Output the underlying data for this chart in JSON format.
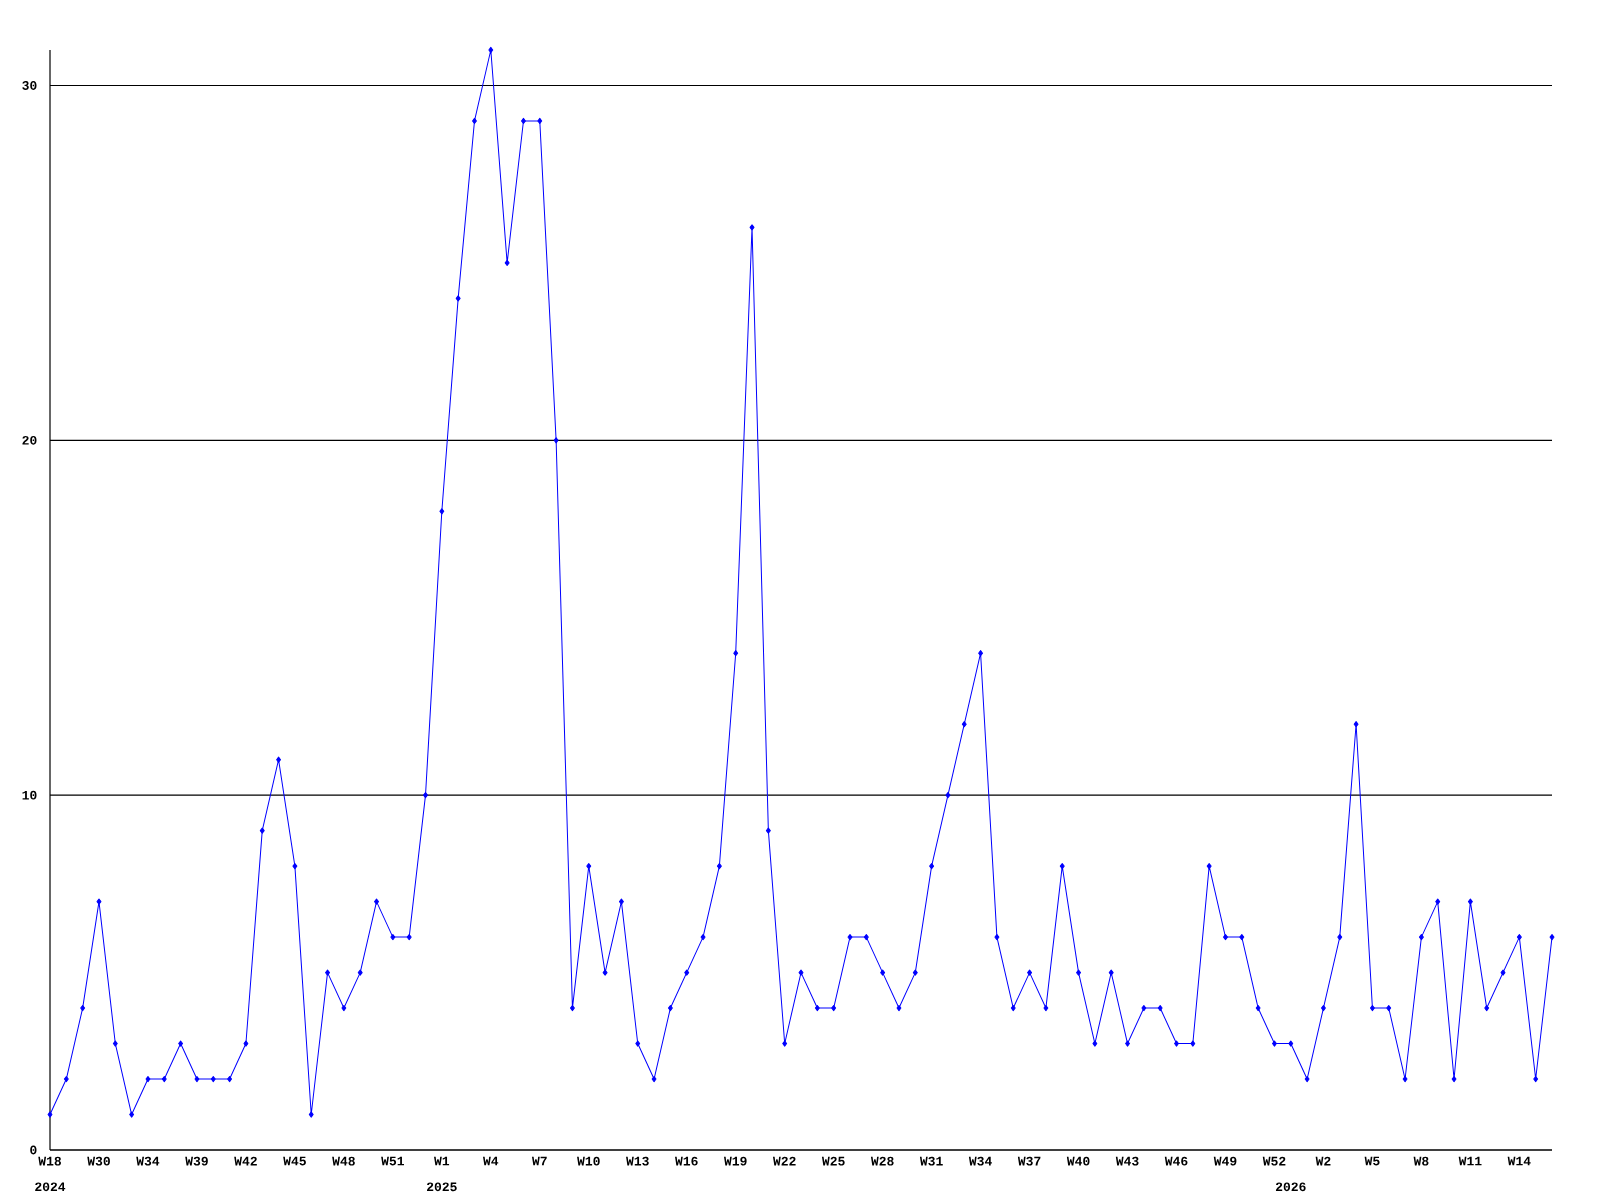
{
  "chart_data": {
    "type": "line",
    "categories": [
      "W18",
      null,
      null,
      "W30",
      null,
      null,
      "W34",
      null,
      null,
      "W39",
      null,
      null,
      "W42",
      null,
      null,
      "W45",
      null,
      null,
      "W48",
      null,
      null,
      "W51",
      null,
      null,
      "W1",
      null,
      null,
      "W4",
      null,
      null,
      "W7",
      null,
      null,
      "W10",
      null,
      null,
      "W13",
      null,
      null,
      "W16",
      null,
      null,
      "W19",
      null,
      null,
      "W22",
      null,
      null,
      "W25",
      null,
      null,
      "W28",
      null,
      null,
      "W31",
      null,
      null,
      "W34",
      null,
      null,
      "W37",
      null,
      null,
      "W40",
      null,
      null,
      "W43",
      null,
      null,
      "W46",
      null,
      null,
      "W49",
      null,
      null,
      "W52",
      null,
      null,
      "W2",
      null,
      null,
      "W5",
      null,
      null,
      "W8",
      null,
      null,
      "W11",
      null,
      null,
      "W14",
      null,
      null
    ],
    "values": [
      1,
      2,
      4,
      7,
      3,
      1,
      2,
      2,
      3,
      2,
      2,
      2,
      3,
      9,
      11,
      8,
      1,
      5,
      4,
      5,
      7,
      6,
      6,
      10,
      18,
      24,
      29,
      31,
      25,
      29,
      29,
      20,
      4,
      8,
      5,
      7,
      3,
      2,
      4,
      5,
      6,
      8,
      14,
      26,
      9,
      3,
      5,
      4,
      4,
      6,
      6,
      5,
      4,
      5,
      8,
      10,
      12,
      14,
      6,
      4,
      5,
      4,
      8,
      5,
      3,
      5,
      3,
      4,
      4,
      3,
      3,
      8,
      6,
      6,
      4,
      3,
      3,
      2,
      4,
      6,
      12,
      4,
      4,
      2,
      6,
      7,
      2,
      7,
      4,
      5,
      6,
      2,
      6
    ],
    "color": "#0000ff",
    "marker": "diamond",
    "grid": "y",
    "ylim": [
      0,
      31
    ],
    "yticks": [
      0,
      10,
      20,
      30
    ],
    "annotations": [
      "2024",
      "2025",
      "2026"
    ]
  }
}
